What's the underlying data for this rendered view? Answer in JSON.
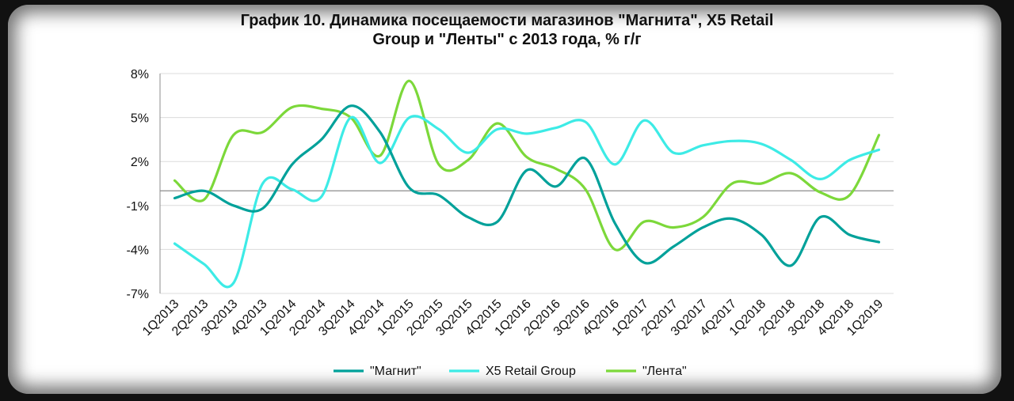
{
  "chart_data": {
    "type": "line",
    "title_line1": "График 10. Динамика посещаемости магазинов \"Магнита\", X5 Retail",
    "title_line2": "Group и \"Ленты\" с 2013 года, % г/г",
    "categories": [
      "1Q2013",
      "2Q2013",
      "3Q2013",
      "4Q2013",
      "1Q2014",
      "2Q2014",
      "3Q2014",
      "4Q2014",
      "1Q2015",
      "2Q2015",
      "3Q2015",
      "4Q2015",
      "1Q2016",
      "2Q2016",
      "3Q2016",
      "4Q2016",
      "1Q2017",
      "2Q2017",
      "3Q2017",
      "4Q2017",
      "1Q2018",
      "2Q2018",
      "3Q2018",
      "4Q2018",
      "1Q2019"
    ],
    "y_ticks": [
      8,
      5,
      2,
      -1,
      -4,
      -7
    ],
    "y_tick_labels": [
      "8%",
      "5%",
      "2%",
      "-1%",
      "-4%",
      "-7%"
    ],
    "ylim": [
      -7,
      8
    ],
    "grid": true,
    "legend_position": "bottom",
    "series": [
      {
        "name": "\"Магнит\"",
        "color": "#00A19A",
        "values": [
          -0.5,
          0.0,
          -1.0,
          -1.2,
          1.8,
          3.5,
          5.8,
          4.0,
          0.2,
          -0.3,
          -1.8,
          -2.1,
          1.4,
          0.3,
          2.2,
          -2.2,
          -4.9,
          -3.8,
          -2.5,
          -1.9,
          -3.0,
          -5.1,
          -1.8,
          -3.0,
          -3.5
        ]
      },
      {
        "name": "X5 Retail Group",
        "color": "#3DEBE6",
        "values": [
          -3.6,
          -5.0,
          -6.3,
          0.5,
          0.1,
          -0.4,
          5.0,
          1.9,
          5.0,
          4.2,
          2.6,
          4.2,
          3.9,
          4.3,
          4.7,
          1.8,
          4.8,
          2.6,
          3.1,
          3.4,
          3.2,
          2.1,
          0.8,
          2.1,
          2.8
        ]
      },
      {
        "name": "\"Лента\"",
        "color": "#7CD83A",
        "values": [
          0.7,
          -0.6,
          3.8,
          4.0,
          5.7,
          5.6,
          5.0,
          2.4,
          7.5,
          1.8,
          2.1,
          4.6,
          2.3,
          1.5,
          0.1,
          -4.0,
          -2.1,
          -2.5,
          -1.8,
          0.5,
          0.5,
          1.2,
          -0.1,
          -0.3,
          3.8
        ]
      }
    ]
  }
}
